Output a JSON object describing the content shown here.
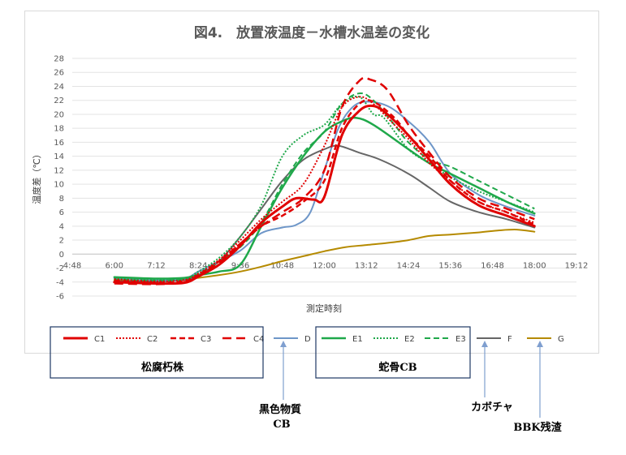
{
  "chart_data": {
    "type": "line",
    "title": "図4.　放置液温度－水槽水温差の変化",
    "xlabel": "測定時刻",
    "ylabel": "温度差（℃）",
    "ylim": [
      -6,
      28
    ],
    "yticks": [
      -6,
      -4,
      -2,
      0,
      2,
      4,
      6,
      8,
      10,
      12,
      14,
      16,
      18,
      20,
      22,
      24,
      26,
      28
    ],
    "xlim_hours": [
      4.8,
      19.2
    ],
    "xticks": [
      "4:48",
      "6:00",
      "7:12",
      "8:24",
      "9:36",
      "10:48",
      "12:00",
      "13:12",
      "14:24",
      "15:36",
      "16:48",
      "18:00",
      "19:12"
    ],
    "grid": "horizontal",
    "legend": "bottom",
    "series": [
      {
        "name": "C1",
        "color": "#e00000",
        "dash": "solid",
        "width": 3,
        "points": [
          [
            6.0,
            -4.0
          ],
          [
            7.2,
            -4.2
          ],
          [
            8.0,
            -4.1
          ],
          [
            8.4,
            -3.2
          ],
          [
            9.0,
            -1.5
          ],
          [
            9.6,
            1.2
          ],
          [
            10.2,
            4.5
          ],
          [
            10.8,
            6.8
          ],
          [
            11.2,
            8.0
          ],
          [
            11.7,
            7.8
          ],
          [
            12.0,
            8.2
          ],
          [
            12.5,
            17.0
          ],
          [
            13.0,
            20.5
          ],
          [
            13.4,
            21.2
          ],
          [
            13.8,
            20.0
          ],
          [
            14.4,
            17.0
          ],
          [
            15.0,
            13.5
          ],
          [
            15.6,
            10.0
          ],
          [
            16.4,
            7.0
          ],
          [
            17.2,
            5.5
          ],
          [
            18.0,
            4.0
          ]
        ]
      },
      {
        "name": "C2",
        "color": "#e00000",
        "dash": "2,2",
        "width": 2,
        "points": [
          [
            6.0,
            -3.6
          ],
          [
            7.2,
            -3.9
          ],
          [
            8.0,
            -3.7
          ],
          [
            8.4,
            -2.8
          ],
          [
            9.0,
            -0.8
          ],
          [
            9.6,
            2.0
          ],
          [
            10.2,
            5.0
          ],
          [
            10.8,
            7.5
          ],
          [
            11.4,
            10.0
          ],
          [
            12.0,
            15.5
          ],
          [
            12.5,
            21.0
          ],
          [
            13.0,
            22.5
          ],
          [
            13.4,
            21.5
          ],
          [
            14.0,
            18.5
          ],
          [
            14.4,
            16.5
          ],
          [
            15.0,
            13.0
          ],
          [
            15.6,
            10.5
          ],
          [
            16.4,
            7.5
          ],
          [
            17.2,
            6.0
          ],
          [
            18.0,
            4.5
          ]
        ]
      },
      {
        "name": "C3",
        "color": "#e00000",
        "dash": "7,4",
        "width": 2.5,
        "points": [
          [
            6.0,
            -3.8
          ],
          [
            7.2,
            -4.1
          ],
          [
            8.0,
            -3.9
          ],
          [
            8.4,
            -3.0
          ],
          [
            9.0,
            -1.0
          ],
          [
            9.6,
            1.5
          ],
          [
            10.2,
            4.0
          ],
          [
            10.8,
            5.5
          ],
          [
            11.4,
            7.5
          ],
          [
            12.0,
            10.5
          ],
          [
            12.5,
            18.0
          ],
          [
            13.0,
            21.5
          ],
          [
            13.4,
            21.8
          ],
          [
            14.0,
            19.5
          ],
          [
            14.4,
            17.0
          ],
          [
            15.0,
            14.0
          ],
          [
            15.6,
            10.5
          ],
          [
            16.4,
            7.5
          ],
          [
            17.2,
            6.0
          ],
          [
            18.0,
            4.2
          ]
        ]
      },
      {
        "name": "C4",
        "color": "#e00000",
        "dash": "11,6",
        "width": 2.5,
        "points": [
          [
            6.0,
            -4.2
          ],
          [
            7.2,
            -4.3
          ],
          [
            8.0,
            -4.0
          ],
          [
            8.4,
            -3.2
          ],
          [
            9.0,
            -1.2
          ],
          [
            9.6,
            1.5
          ],
          [
            10.2,
            4.0
          ],
          [
            10.8,
            6.0
          ],
          [
            11.4,
            8.0
          ],
          [
            12.0,
            12.0
          ],
          [
            12.5,
            21.0
          ],
          [
            13.0,
            24.8
          ],
          [
            13.3,
            25.0
          ],
          [
            13.8,
            23.5
          ],
          [
            14.4,
            18.5
          ],
          [
            15.0,
            14.5
          ],
          [
            15.6,
            11.0
          ],
          [
            16.4,
            8.0
          ],
          [
            17.2,
            6.5
          ],
          [
            18.0,
            5.0
          ]
        ]
      },
      {
        "name": "D",
        "color": "#6e96c8",
        "dash": "solid",
        "width": 2,
        "points": [
          [
            6.0,
            -3.5
          ],
          [
            7.2,
            -3.7
          ],
          [
            8.0,
            -3.5
          ],
          [
            8.4,
            -2.5
          ],
          [
            9.0,
            -1.0
          ],
          [
            9.6,
            0.5
          ],
          [
            10.2,
            3.0
          ],
          [
            10.8,
            3.8
          ],
          [
            11.2,
            4.2
          ],
          [
            11.6,
            6.0
          ],
          [
            12.0,
            12.0
          ],
          [
            12.4,
            18.0
          ],
          [
            12.8,
            21.0
          ],
          [
            13.2,
            21.8
          ],
          [
            13.8,
            21.2
          ],
          [
            14.4,
            19.0
          ],
          [
            15.0,
            16.0
          ],
          [
            15.6,
            11.5
          ],
          [
            16.4,
            8.5
          ],
          [
            17.2,
            6.8
          ],
          [
            18.0,
            5.5
          ]
        ]
      },
      {
        "name": "E1",
        "color": "#1fa84a",
        "dash": "solid",
        "width": 2.5,
        "points": [
          [
            6.0,
            -3.3
          ],
          [
            7.2,
            -3.5
          ],
          [
            8.0,
            -3.4
          ],
          [
            8.4,
            -3.0
          ],
          [
            9.0,
            -2.5
          ],
          [
            9.6,
            -1.5
          ],
          [
            10.2,
            4.0
          ],
          [
            10.8,
            9.5
          ],
          [
            11.4,
            14.0
          ],
          [
            12.0,
            17.5
          ],
          [
            12.5,
            19.0
          ],
          [
            12.9,
            19.5
          ],
          [
            13.4,
            18.5
          ],
          [
            14.4,
            15.0
          ],
          [
            15.0,
            13.0
          ],
          [
            15.6,
            11.5
          ],
          [
            16.4,
            9.5
          ],
          [
            17.2,
            7.5
          ],
          [
            18.0,
            5.8
          ]
        ]
      },
      {
        "name": "E2",
        "color": "#1fa84a",
        "dash": "2,2",
        "width": 2,
        "points": [
          [
            6.0,
            -3.5
          ],
          [
            7.2,
            -3.6
          ],
          [
            8.0,
            -3.5
          ],
          [
            8.4,
            -2.5
          ],
          [
            9.0,
            -0.5
          ],
          [
            9.6,
            2.5
          ],
          [
            10.2,
            7.0
          ],
          [
            10.8,
            14.0
          ],
          [
            11.4,
            17.0
          ],
          [
            12.0,
            18.5
          ],
          [
            12.5,
            21.5
          ],
          [
            13.0,
            22.5
          ],
          [
            13.4,
            20.0
          ],
          [
            13.7,
            19.5
          ],
          [
            14.4,
            15.0
          ],
          [
            15.0,
            13.0
          ],
          [
            15.6,
            11.0
          ],
          [
            16.4,
            9.0
          ],
          [
            17.2,
            7.5
          ],
          [
            18.0,
            6.0
          ]
        ]
      },
      {
        "name": "E3",
        "color": "#1fa84a",
        "dash": "7,4",
        "width": 2,
        "points": [
          [
            6.0,
            -3.6
          ],
          [
            7.2,
            -3.8
          ],
          [
            8.0,
            -3.6
          ],
          [
            8.4,
            -2.8
          ],
          [
            9.0,
            -1.0
          ],
          [
            9.6,
            1.0
          ],
          [
            10.2,
            4.5
          ],
          [
            10.8,
            10.0
          ],
          [
            11.4,
            14.5
          ],
          [
            12.0,
            17.5
          ],
          [
            12.5,
            21.5
          ],
          [
            13.0,
            23.0
          ],
          [
            13.4,
            22.0
          ],
          [
            14.0,
            18.5
          ],
          [
            14.4,
            16.0
          ],
          [
            15.0,
            13.5
          ],
          [
            15.6,
            12.5
          ],
          [
            16.4,
            10.5
          ],
          [
            17.2,
            8.5
          ],
          [
            18.0,
            6.5
          ]
        ]
      },
      {
        "name": "F",
        "color": "#666666",
        "dash": "solid",
        "width": 2,
        "points": [
          [
            6.0,
            -3.9
          ],
          [
            7.2,
            -3.9
          ],
          [
            8.0,
            -3.7
          ],
          [
            8.4,
            -3.0
          ],
          [
            9.0,
            -1.0
          ],
          [
            9.6,
            2.5
          ],
          [
            10.2,
            6.5
          ],
          [
            10.8,
            10.5
          ],
          [
            11.4,
            13.5
          ],
          [
            12.0,
            15.0
          ],
          [
            12.4,
            15.5
          ],
          [
            13.0,
            14.5
          ],
          [
            13.6,
            13.5
          ],
          [
            14.4,
            11.5
          ],
          [
            15.0,
            9.5
          ],
          [
            15.6,
            7.5
          ],
          [
            16.4,
            6.0
          ],
          [
            17.2,
            5.0
          ],
          [
            18.0,
            3.8
          ]
        ]
      },
      {
        "name": "G",
        "color": "#b58a00",
        "dash": "solid",
        "width": 2,
        "points": [
          [
            6.0,
            -3.7
          ],
          [
            7.2,
            -3.8
          ],
          [
            8.0,
            -3.6
          ],
          [
            8.4,
            -3.4
          ],
          [
            9.0,
            -3.0
          ],
          [
            9.6,
            -2.5
          ],
          [
            10.2,
            -1.8
          ],
          [
            10.8,
            -1.0
          ],
          [
            11.4,
            -0.3
          ],
          [
            12.0,
            0.4
          ],
          [
            12.6,
            1.0
          ],
          [
            13.2,
            1.3
          ],
          [
            13.8,
            1.6
          ],
          [
            14.4,
            2.0
          ],
          [
            15.0,
            2.6
          ],
          [
            15.6,
            2.8
          ],
          [
            16.4,
            3.1
          ],
          [
            17.0,
            3.4
          ],
          [
            17.5,
            3.5
          ],
          [
            18.0,
            3.2
          ]
        ]
      }
    ]
  },
  "groups": {
    "matsu": "松腐朽株",
    "hebi": "蛇骨CB"
  },
  "annotations": {
    "d_line1": "黒色物質",
    "d_line2": "CB",
    "f_label": "カボチャ",
    "g_label": "BBK残渣"
  }
}
